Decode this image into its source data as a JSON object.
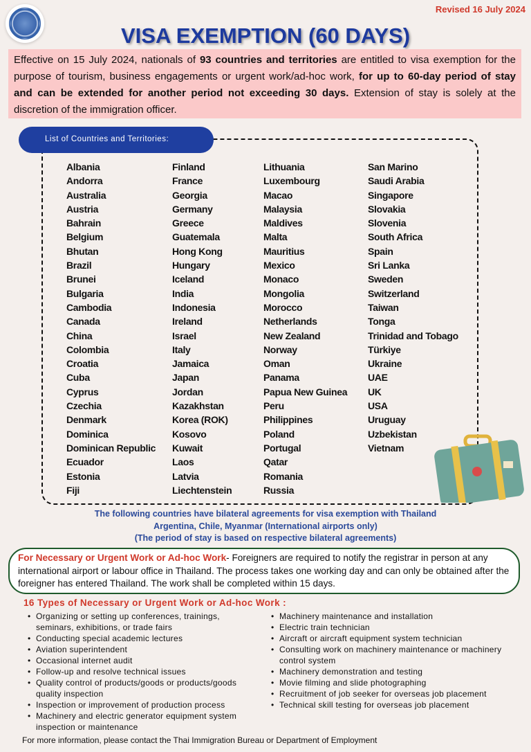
{
  "header": {
    "revised": "Revised 16 July 2024",
    "title": "VISA EXEMPTION (60 DAYS)"
  },
  "intro": {
    "p1": "Effective on 15 July 2024, nationals of ",
    "b1": "93 countries and territories",
    "p2": " are entitled to visa exemption for the purpose of tourism, business engagements or urgent work/ad-hoc work, ",
    "b2": "for up to 60-day period of stay and can be extended for another period not exceeding 30 days.",
    "p3": " Extension of stay is solely at the discretion of the immigration officer."
  },
  "list_label": "List of Countries and Territories:",
  "countries": [
    [
      "Albania",
      "Andorra",
      "Australia",
      "Austria",
      "Bahrain",
      "Belgium",
      "Bhutan",
      "Brazil",
      "Brunei",
      "Bulgaria",
      "Cambodia",
      "Canada",
      "China",
      "Colombia",
      "Croatia",
      "Cuba",
      "Cyprus",
      "Czechia",
      "Denmark",
      "Dominica",
      "Dominican Republic",
      "Ecuador",
      "Estonia",
      "Fiji"
    ],
    [
      "Finland",
      "France",
      "Georgia",
      "Germany",
      "Greece",
      "Guatemala",
      "Hong Kong",
      "Hungary",
      "Iceland",
      "India",
      "Indonesia",
      "Ireland",
      "Israel",
      "Italy",
      "Jamaica",
      "Japan",
      "Jordan",
      "Kazakhstan",
      "Korea (ROK)",
      "Kosovo",
      "Kuwait",
      "Laos",
      "Latvia",
      "Liechtenstein"
    ],
    [
      "Lithuania",
      "Luxembourg",
      "Macao",
      "Malaysia",
      "Maldives",
      "Malta",
      "Mauritius",
      "Mexico",
      "Monaco",
      "Mongolia",
      "Morocco",
      "Netherlands",
      "New Zealand",
      "Norway",
      "Oman",
      "Panama",
      "Papua New Guinea",
      "Peru",
      "Philippines",
      "Poland",
      "Portugal",
      "Qatar",
      "Romania",
      "Russia"
    ],
    [
      "San Marino",
      "Saudi Arabia",
      "Singapore",
      "Slovakia",
      "Slovenia",
      "South Africa",
      "Spain",
      "Sri Lanka",
      "Sweden",
      "Switzerland",
      "Taiwan",
      "Tonga",
      "Trinidad and Tobago",
      "Türkiye",
      "Ukraine",
      "UAE",
      "UK",
      "USA",
      "Uruguay",
      "Uzbekistan",
      "Vietnam"
    ]
  ],
  "bilateral": [
    "The following countries have bilateral agreements for visa exemption with Thailand",
    "Argentina, Chile, Myanmar (International airports only)",
    "(The period of stay is based on respective bilateral agreements)"
  ],
  "urgent": {
    "heading": "For Necessary or Urgent Work or Ad-hoc Work",
    "text": "- Foreigners are required to notify the registrar in person at any international airport or labour office in Thailand. The process takes one working day and can only be obtained after the foreigner has entered Thailand. The work shall be completed within 15 days."
  },
  "types": {
    "heading": "16 Types of Necessary or Urgent Work or Ad-hoc Work :",
    "left": [
      "Organizing or setting up conferences, trainings, seminars, exhibitions, or trade fairs",
      "Conducting special academic lectures",
      "Aviation superintendent",
      "Occasional internet audit",
      "Follow-up and resolve technical issues",
      "Quality control of products/goods or products/goods quality inspection",
      "Inspection or improvement of production process",
      "Machinery and electric generator equipment system inspection or maintenance"
    ],
    "right": [
      "Machinery maintenance and installation",
      "Electric train technician",
      "Aircraft or aircraft equipment system technician",
      "Consulting work on machinery maintenance or machinery control system",
      "Machinery demonstration and testing",
      "Movie filming  and slide photographing",
      "Recruitment of job seeker for overseas job placement",
      "Technical skill testing for overseas job placement"
    ]
  },
  "footer": "For more information, please contact the Thai Immigration Bureau or Department of Employment",
  "colors": {
    "title": "#1d3a9e",
    "accent_red": "#d0392b",
    "pink_box": "#fbc9c9",
    "pill": "#1f3fa0",
    "urgent_border": "#1e5a2b"
  }
}
